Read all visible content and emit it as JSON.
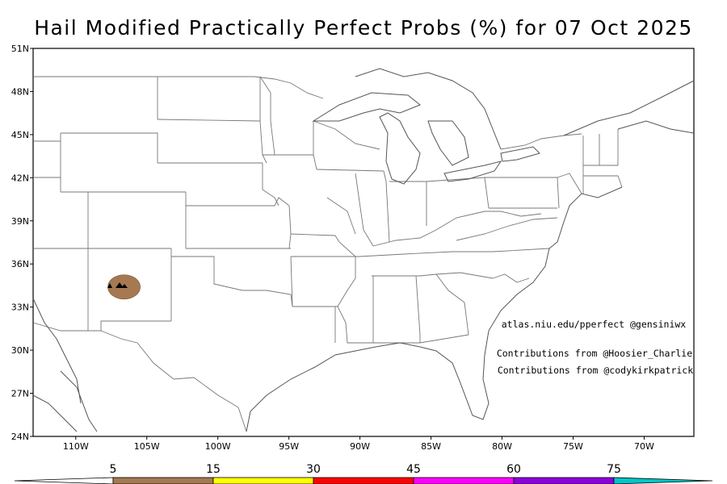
{
  "title": "Hail Modified Practically Perfect Probs (%) for 07 Oct 2025",
  "credits": [
    "atlas.niu.edu/pperfect @gensiniwx",
    "Contributions from @Hoosier_Charlie",
    "Contributions from @codykirkpatrick"
  ],
  "lat_ticks": [
    {
      "label": "51N",
      "value": 51
    },
    {
      "label": "48N",
      "value": 48
    },
    {
      "label": "45N",
      "value": 45
    },
    {
      "label": "42N",
      "value": 42
    },
    {
      "label": "39N",
      "value": 39
    },
    {
      "label": "36N",
      "value": 36
    },
    {
      "label": "33N",
      "value": 33
    },
    {
      "label": "30N",
      "value": 30
    },
    {
      "label": "27N",
      "value": 27
    },
    {
      "label": "24N",
      "value": 24
    }
  ],
  "lon_ticks": [
    {
      "label": "110W",
      "value": -110
    },
    {
      "label": "105W",
      "value": -105
    },
    {
      "label": "100W",
      "value": -100
    },
    {
      "label": "95W",
      "value": -95
    },
    {
      "label": "90W",
      "value": -90
    },
    {
      "label": "85W",
      "value": -85
    },
    {
      "label": "80W",
      "value": -80
    },
    {
      "label": "75W",
      "value": -75
    },
    {
      "label": "70W",
      "value": -70
    }
  ],
  "extent": {
    "lon_min": -113,
    "lon_max": -66.5,
    "lat_min": 24,
    "lat_max": 51
  },
  "hail_area": {
    "lon": -106.6,
    "lat": 34.4,
    "level": "5-15"
  },
  "colorbar": {
    "labels": [
      "5",
      "15",
      "30",
      "45",
      "60",
      "75"
    ],
    "bins": [
      {
        "from": 5,
        "to": 15,
        "color": "#a57a52"
      },
      {
        "from": 15,
        "to": 30,
        "color": "#ffff00"
      },
      {
        "from": 30,
        "to": 45,
        "color": "#ff0000"
      },
      {
        "from": 45,
        "to": 60,
        "color": "#ff00ff"
      },
      {
        "from": 60,
        "to": 75,
        "color": "#8c00dc"
      },
      {
        "from": 75,
        "to": 100,
        "color": "#00c8c8"
      }
    ]
  }
}
